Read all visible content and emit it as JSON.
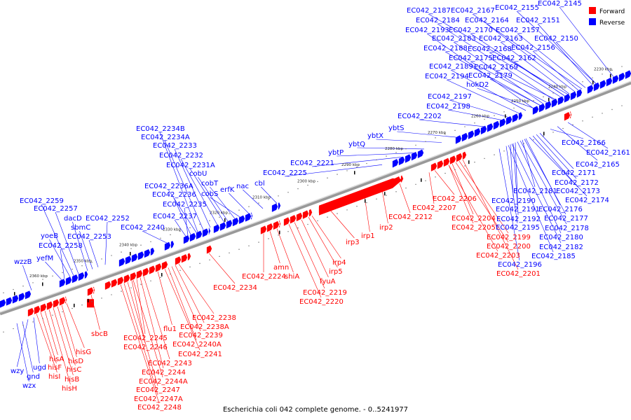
{
  "legend": {
    "forward": {
      "label": "Forward",
      "color": "#ff0000"
    },
    "reverse": {
      "label": "Reverse",
      "color": "#0000ff"
    }
  },
  "caption": "Escherichia coli 042 complete genome. - 0..5241977",
  "kbp_ticks": [
    "2230 kbp",
    "2240 kbp",
    "2250 kbp",
    "2260 kbp",
    "2270 kbp",
    "2280 kbp",
    "2290 kbp",
    "2300 kbp",
    "2310 kbp",
    "2320 kbp",
    "2330 kbp",
    "2340 kbp",
    "2350 kbp",
    "2360 kbp"
  ],
  "reverse_labels": [
    "EC042_2187",
    "EC042_2167",
    "EC042_2155",
    "EC042_2145",
    "EC042_2184",
    "EC042_2164",
    "EC042_2151",
    "EC042_2193",
    "EC042_2170",
    "EC042_2157",
    "EC042_2183",
    "EC042_2163",
    "EC042_2150",
    "EC042_2188",
    "EC042_2168",
    "EC042_2156",
    "EC042_2175",
    "EC042_2162",
    "EC042_2189",
    "EC042_2169",
    "EC042_2194",
    "EC042_2179",
    "hokD2",
    "EC042_2197",
    "EC042_2198",
    "EC042_2202",
    "ybtS",
    "ybtX",
    "ybtQ",
    "ybtP",
    "EC042_2221",
    "EC042_2225",
    "cbl",
    "nac",
    "erfK",
    "cobS",
    "cobT",
    "cobU",
    "EC042_2231A",
    "EC042_2232",
    "EC042_2233",
    "EC042_2234A",
    "EC042_2234B",
    "EC042_2236A",
    "EC042_2236",
    "EC042_2235",
    "EC042_2237",
    "EC042_2240",
    "EC042_2252",
    "EC042_2253",
    "sbmC",
    "dacD",
    "EC042_2257",
    "EC042_2259",
    "yoeB",
    "EC042_2258",
    "yefM",
    "wzzB",
    "EC042_2166",
    "EC042_2161",
    "EC042_2165",
    "EC042_2171",
    "EC042_2172",
    "EC042_2181",
    "EC042_2173",
    "EC042_2174",
    "EC042_2190",
    "EC042_2191",
    "EC042_2176",
    "EC042_2177",
    "EC042_2192",
    "EC042_2195",
    "EC042_2178",
    "EC042_2180",
    "EC042_2182",
    "EC042_2185",
    "EC042_2196",
    "wzy",
    "ugd",
    "gnd",
    "wzx"
  ],
  "forward_labels": [
    "EC042_2206",
    "EC042_2207",
    "EC042_2212",
    "EC042_2204",
    "EC042_2205",
    "EC042_2199",
    "EC042_2200",
    "EC042_2203",
    "EC042_2201",
    "irp1",
    "irp2",
    "irp3",
    "irp4",
    "irp5",
    "fyuA",
    "EC042_2219",
    "EC042_2220",
    "amn",
    "shiA",
    "EC042_2224",
    "EC042_2234",
    "EC042_2238",
    "EC042_2238A",
    "EC042_2239",
    "EC042_2240A",
    "EC042_2241",
    "flu1",
    "EC042_2245",
    "EC042_2246",
    "EC042_2243",
    "EC042_2244",
    "EC042_2244A",
    "EC042_2247",
    "EC042_2247A",
    "EC042_2248",
    "sbcB",
    "hisG",
    "hisD",
    "hisC",
    "hisB",
    "hisH",
    "hisA",
    "hisF",
    "hisI"
  ]
}
